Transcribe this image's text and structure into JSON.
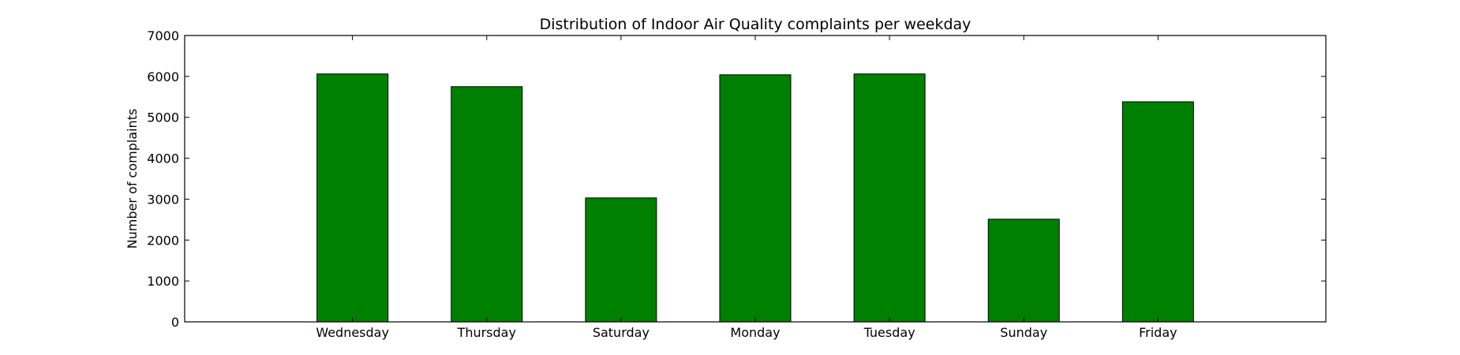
{
  "chart_data": {
    "type": "bar",
    "title": "Distribution of  Indoor Air Quality complaints per weekday",
    "xlabel": "",
    "ylabel": "Number of complaints",
    "categories": [
      "Wednesday",
      "Thursday",
      "Saturday",
      "Monday",
      "Tuesday",
      "Sunday",
      "Friday"
    ],
    "values": [
      6060,
      5750,
      3030,
      6040,
      6060,
      2510,
      5380
    ],
    "ylim": [
      0,
      7000
    ],
    "yticks": [
      0,
      1000,
      2000,
      3000,
      4000,
      5000,
      6000,
      7000
    ],
    "grid": false,
    "legend": "none",
    "colors": {
      "bar": "#008000",
      "edge": "#000000",
      "axes": "#000000"
    }
  }
}
